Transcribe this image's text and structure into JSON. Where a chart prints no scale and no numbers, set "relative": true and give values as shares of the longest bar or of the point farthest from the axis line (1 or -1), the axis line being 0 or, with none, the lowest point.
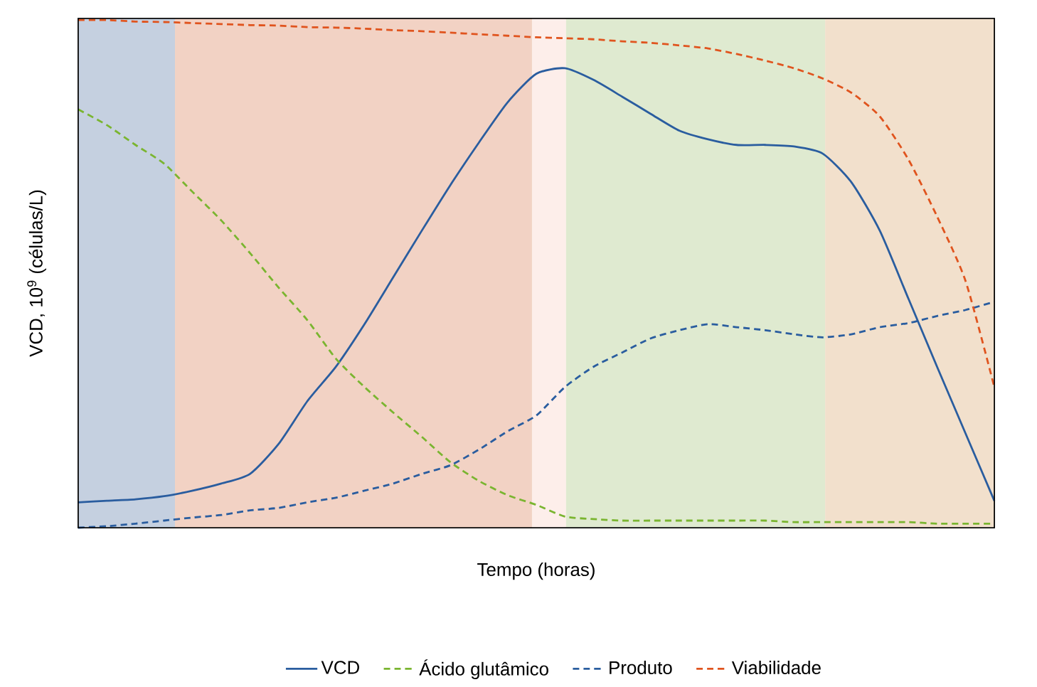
{
  "chart_data": {
    "type": "line",
    "relative": true,
    "xlabel": "Tempo (horas)",
    "ylabel": "VCD, 10$^{9}$ (células/L)",
    "legend": "bottom",
    "marker": "none",
    "categories": [
      null,
      null,
      null,
      null,
      null,
      null,
      null,
      null,
      null,
      null,
      null,
      null,
      null,
      null,
      null,
      null,
      null,
      null,
      null,
      null,
      null,
      null,
      null,
      null,
      null,
      null,
      null,
      null,
      null,
      null,
      null,
      null,
      null
    ],
    "series": [
      {
        "name": "VCD",
        "color": "#2a5d9f",
        "line_style": "solid",
        "values": [
          0.05,
          0.053,
          0.056,
          0.062,
          0.073,
          0.087,
          0.106,
          0.165,
          0.249,
          0.317,
          0.401,
          0.493,
          0.585,
          0.675,
          0.759,
          0.838,
          0.894,
          0.905,
          0.882,
          0.849,
          0.815,
          0.782,
          0.765,
          0.754,
          0.754,
          0.751,
          0.737,
          0.681,
          0.585,
          0.451,
          0.317,
          0.185,
          0.053
        ]
      },
      {
        "name": "Ácido glutâmico",
        "color": "#7ab530",
        "line_style": "dashed",
        "values": [
          0.824,
          0.793,
          0.754,
          0.717,
          0.661,
          0.605,
          0.541,
          0.473,
          0.409,
          0.333,
          0.277,
          0.227,
          0.179,
          0.129,
          0.092,
          0.064,
          0.045,
          0.022,
          0.017,
          0.014,
          0.014,
          0.014,
          0.014,
          0.014,
          0.014,
          0.011,
          0.011,
          0.011,
          0.011,
          0.011,
          0.008,
          0.008,
          0.008
        ]
      },
      {
        "name": "Produto",
        "color": "#2a5d9f",
        "line_style": "dashed",
        "values": [
          0.0,
          0.003,
          0.008,
          0.014,
          0.02,
          0.025,
          0.034,
          0.039,
          0.05,
          0.059,
          0.073,
          0.087,
          0.106,
          0.123,
          0.154,
          0.19,
          0.221,
          0.277,
          0.317,
          0.345,
          0.373,
          0.389,
          0.401,
          0.395,
          0.389,
          0.381,
          0.375,
          0.381,
          0.395,
          0.403,
          0.417,
          0.429,
          0.445
        ]
      },
      {
        "name": "Viabilidade",
        "color": "#e0541e",
        "line_style": "dashed",
        "values": [
          1.0,
          1.0,
          0.997,
          0.996,
          0.994,
          0.992,
          0.99,
          0.989,
          0.986,
          0.985,
          0.983,
          0.98,
          0.978,
          0.975,
          0.972,
          0.969,
          0.966,
          0.964,
          0.962,
          0.958,
          0.955,
          0.95,
          0.944,
          0.933,
          0.92,
          0.905,
          0.885,
          0.857,
          0.81,
          0.725,
          0.613,
          0.485,
          0.277
        ]
      }
    ]
  }
}
